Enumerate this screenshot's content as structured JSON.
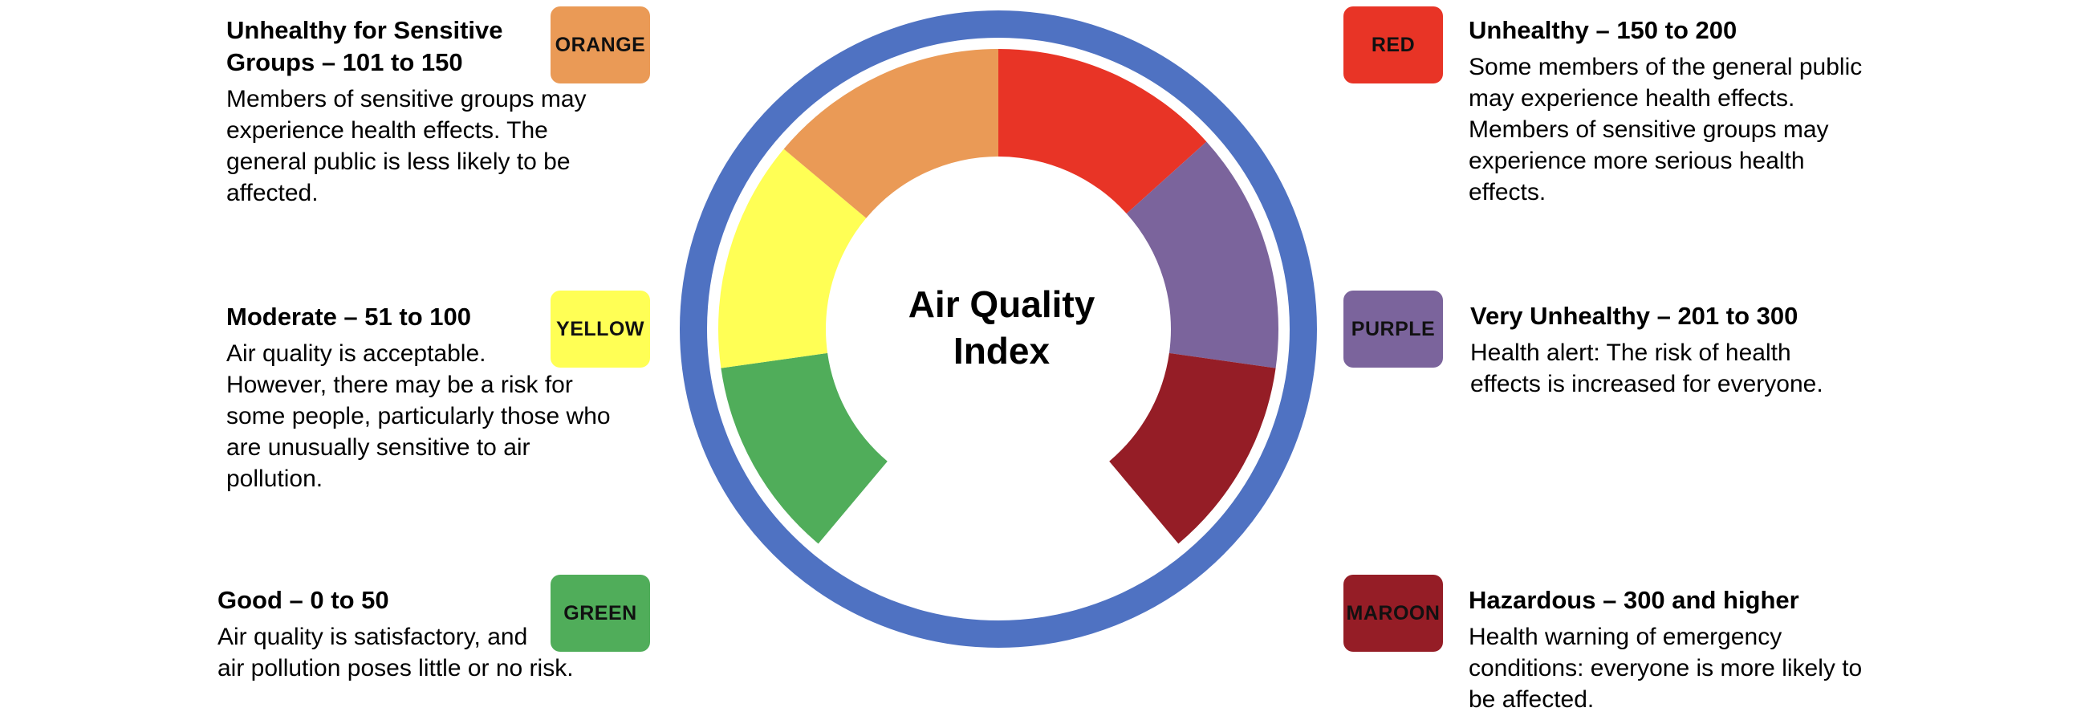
{
  "center_title_line1": "Air Quality",
  "center_title_line2": "Index",
  "colors": {
    "ring": "#4f72c2",
    "good": "#50ad5a",
    "moderate": "#ffff55",
    "usg": "#ea9a56",
    "unhealthy": "#e83426",
    "very_unhealthy": "#7b649c",
    "hazardous": "#951d26"
  },
  "categories": [
    {
      "id": "usg",
      "heading_line1": "Unhealthy for Sensitive",
      "heading_line2": "Groups – 101 to 150",
      "badge": "ORANGE",
      "desc": [
        "Members of sensitive groups may",
        "experience health effects. The",
        "general public is less likely to be",
        "affected."
      ]
    },
    {
      "id": "moderate",
      "heading": "Moderate – 51 to 100",
      "badge": "YELLOW",
      "desc": [
        "Air quality is acceptable.",
        "However, there may be a risk for",
        "some people, particularly those who",
        "are unusually sensitive to air",
        "pollution."
      ]
    },
    {
      "id": "good",
      "heading": "Good – 0 to 50",
      "badge": "GREEN",
      "desc": [
        "Air quality is satisfactory, and",
        "air pollution poses little or no risk."
      ]
    },
    {
      "id": "unhealthy",
      "heading": "Unhealthy – 150 to 200",
      "badge": "RED",
      "desc": [
        "Some members of the general public",
        "may experience health effects.",
        "Members of sensitive groups may",
        "experience more serious health",
        "effects."
      ]
    },
    {
      "id": "very_unhealthy",
      "heading": "Very Unhealthy – 201 to 300",
      "badge": "PURPLE",
      "desc": [
        "Health alert: The risk of health",
        "effects is increased for everyone."
      ]
    },
    {
      "id": "hazardous",
      "heading": "Hazardous – 300 and higher",
      "badge": "MAROON",
      "desc": [
        "Health warning of emergency",
        "conditions: everyone is more likely to",
        "be affected."
      ]
    }
  ]
}
